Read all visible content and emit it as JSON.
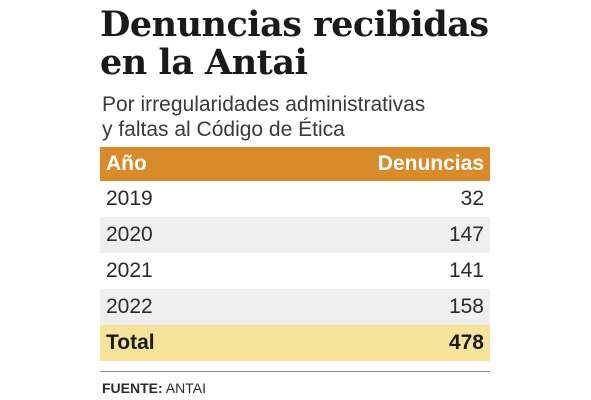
{
  "header": {
    "title_line1": "Denuncias recibidas",
    "title_line2": "en la Antai",
    "subtitle_line1": "Por irregularidades administrativas",
    "subtitle_line2": "y faltas al Código de Ética"
  },
  "chart_data": {
    "type": "table",
    "columns": [
      "Año",
      "Denuncias"
    ],
    "rows": [
      {
        "year": "2019",
        "value": 32
      },
      {
        "year": "2020",
        "value": 147
      },
      {
        "year": "2021",
        "value": 141
      },
      {
        "year": "2022",
        "value": 158
      }
    ],
    "total": {
      "label": "Total",
      "value": 478
    }
  },
  "source": {
    "label": "FUENTE:",
    "text": "ANTAI"
  },
  "colors": {
    "header_bg": "#d98a2b",
    "stripe_bg": "#efefef",
    "total_bg": "#f7e39a"
  }
}
